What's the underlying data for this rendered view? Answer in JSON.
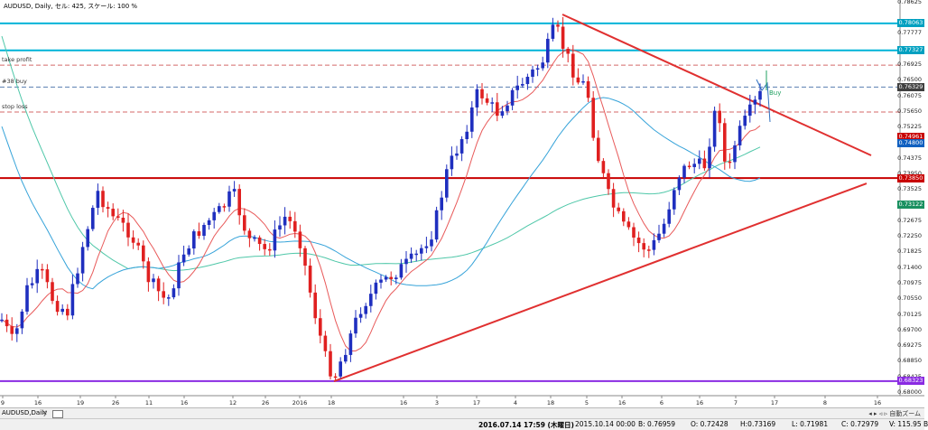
{
  "window_title": "AUDUSD, Daily, セル: 425, スケール: 100 %",
  "chart_data": {
    "type": "candlestick",
    "symbol": "AUDUSD",
    "timeframe": "Daily",
    "y_ticks": [
      "0.78625",
      "0.78063",
      "0.77777",
      "0.77327",
      "0.76925",
      "0.76500",
      "0.76329",
      "0.76075",
      "0.75650",
      "0.75225",
      "0.74961",
      "0.74800",
      "0.74375",
      "0.73950",
      "0.73850",
      "0.73525",
      "0.73122",
      "0.72675",
      "0.72250",
      "0.71825",
      "0.71400",
      "0.70975",
      "0.70550",
      "0.70125",
      "0.69700",
      "0.69275",
      "0.68850",
      "0.68425",
      "0.68323",
      "0.68000"
    ],
    "x_ticks": [
      "9",
      "16",
      "19",
      "26",
      "11",
      "16",
      "12",
      "26",
      "2016",
      "18",
      "16",
      "3",
      "17",
      "4",
      "18",
      "5",
      "16",
      "6",
      "16",
      "7",
      "17",
      "8",
      "16"
    ],
    "ylim": [
      0.68,
      0.78625
    ],
    "horizontal_lines": [
      {
        "label": "",
        "price": 0.78063,
        "color": "#00b4d8"
      },
      {
        "label": "",
        "price": 0.77327,
        "color": "#00b4d8"
      },
      {
        "label": "take profit",
        "price": 0.76925,
        "color": "#d46a6a"
      },
      {
        "label": "#38 buy",
        "price": 0.76329,
        "color": "#5a7fb0"
      },
      {
        "label": "stop loss",
        "price": 0.7565,
        "color": "#d46a6a"
      },
      {
        "label": "",
        "price": 0.7385,
        "color": "#c80000"
      },
      {
        "label": "",
        "price": 0.68323,
        "color": "#8a2be2"
      }
    ],
    "price_tags": [
      {
        "text": "0.78063",
        "price": 0.78063,
        "color": "#00a0c0"
      },
      {
        "text": "0.77327",
        "price": 0.77327,
        "color": "#00a0c0"
      },
      {
        "text": "0.76329",
        "price": 0.76329,
        "color": "#404040"
      },
      {
        "text": "0.74961",
        "price": 0.74961,
        "color": "#c80000"
      },
      {
        "text": "0.74800",
        "price": 0.748,
        "color": "#1060c0"
      },
      {
        "text": "0.73850",
        "price": 0.7385,
        "color": "#c80000"
      },
      {
        "text": "0.73122",
        "price": 0.73122,
        "color": "#1a9060"
      },
      {
        "text": "0.68323",
        "price": 0.68323,
        "color": "#8a2be2"
      }
    ],
    "annotation": "Buy",
    "colors": {
      "up": "#1f2fbf",
      "down": "#e02020",
      "trend": "#e03030",
      "ma_fast": "#e85a5a",
      "ma_mid": "#36a3d9",
      "ma_slow": "#4ec7a8"
    }
  },
  "tab": {
    "name": "AUDUSD,Daily",
    "close": "×",
    "scroll": "自動ズーム"
  },
  "status": {
    "datetime": "2016.07.14 17:59 (木曜日)",
    "bar_time": "2015.10.14 00:00",
    "open": "O: 0.72428",
    "high": "H:0.73169",
    "low": "L: 0.71981",
    "close": "C: 0.72979",
    "volume": "V: 115.95 B",
    "buy_price": "B: 0.76959"
  }
}
